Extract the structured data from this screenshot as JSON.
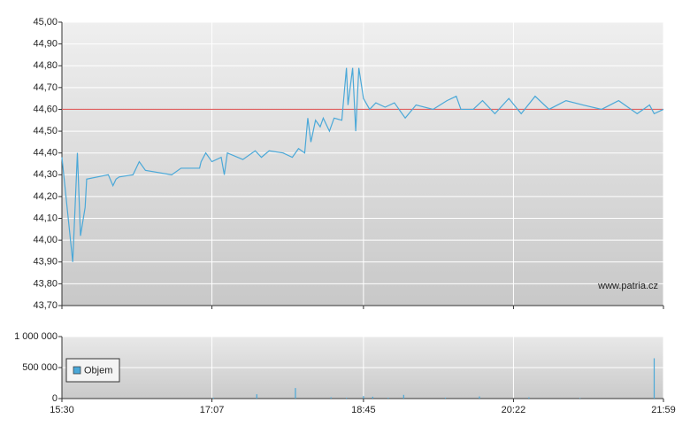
{
  "chart_data": [
    {
      "type": "line",
      "annotation": "www.patria.cz",
      "x": [
        930,
        937,
        940,
        942,
        945,
        946,
        960,
        963,
        965,
        967,
        976,
        980,
        984,
        1001,
        1007,
        1019,
        1020,
        1023,
        1027,
        1033,
        1035,
        1037,
        1047,
        1055,
        1059,
        1064,
        1073,
        1079,
        1083,
        1087,
        1089,
        1091,
        1094,
        1097,
        1099,
        1103,
        1106,
        1111,
        1114,
        1115,
        1118,
        1120,
        1122,
        1125,
        1129,
        1133,
        1139,
        1145,
        1152,
        1159,
        1170,
        1179,
        1185,
        1188,
        1196,
        1202,
        1210,
        1219,
        1227,
        1236,
        1245,
        1256,
        1267,
        1279,
        1290,
        1302,
        1310,
        1313,
        1319
      ],
      "series": [
        {
          "color": "#4aa8d8",
          "values": [
            44.38,
            43.9,
            44.4,
            44.02,
            44.15,
            44.28,
            44.3,
            44.25,
            44.28,
            44.29,
            44.3,
            44.36,
            44.32,
            44.3,
            44.33,
            44.33,
            44.36,
            44.4,
            44.36,
            44.38,
            44.3,
            44.4,
            44.37,
            44.41,
            44.38,
            44.41,
            44.4,
            44.38,
            44.42,
            44.4,
            44.56,
            44.45,
            44.55,
            44.52,
            44.56,
            44.5,
            44.56,
            44.55,
            44.79,
            44.62,
            44.79,
            44.5,
            44.79,
            44.65,
            44.6,
            44.63,
            44.61,
            44.63,
            44.56,
            44.62,
            44.6,
            44.64,
            44.66,
            44.6,
            44.6,
            44.64,
            44.58,
            44.65,
            44.58,
            44.66,
            44.6,
            44.64,
            44.62,
            44.6,
            44.64,
            44.58,
            44.62,
            44.58,
            44.6
          ]
        }
      ],
      "reference_line": {
        "value": 44.6,
        "color": "#e06060"
      },
      "xlim": [
        930,
        1319
      ],
      "xticks": [
        930,
        1027,
        1125,
        1222,
        1319
      ],
      "ylim": [
        43.7,
        45.0
      ],
      "yticks": [
        {
          "value": 43.7,
          "label": "43,70"
        },
        {
          "value": 43.8,
          "label": "43,80"
        },
        {
          "value": 43.9,
          "label": "43,90"
        },
        {
          "value": 44.0,
          "label": "44,00"
        },
        {
          "value": 44.1,
          "label": "44,10"
        },
        {
          "value": 44.2,
          "label": "44,20"
        },
        {
          "value": 44.3,
          "label": "44,30"
        },
        {
          "value": 44.4,
          "label": "44,40"
        },
        {
          "value": 44.5,
          "label": "44,50"
        },
        {
          "value": 44.6,
          "label": "44,60"
        },
        {
          "value": 44.7,
          "label": "44,70"
        },
        {
          "value": 44.8,
          "label": "44,80"
        },
        {
          "value": 44.9,
          "label": "44,90"
        },
        {
          "value": 45.0,
          "label": "45,00"
        }
      ],
      "grid": true
    },
    {
      "type": "bar",
      "x": [
        1028,
        1056,
        1081,
        1104,
        1114,
        1125,
        1131,
        1141,
        1151,
        1178,
        1200,
        1232,
        1265,
        1313
      ],
      "series": [
        {
          "name": "Objem",
          "color": "#4aa8d8",
          "values": [
            15000,
            70000,
            170000,
            20000,
            15000,
            40000,
            30000,
            15000,
            60000,
            15000,
            35000,
            20000,
            10000,
            650000
          ]
        }
      ],
      "xlim": [
        930,
        1319
      ],
      "xticks": [
        {
          "value": 930,
          "label": "15:30"
        },
        {
          "value": 1027,
          "label": "17:07"
        },
        {
          "value": 1125,
          "label": "18:45"
        },
        {
          "value": 1222,
          "label": "20:22"
        },
        {
          "value": 1319,
          "label": "21:59"
        }
      ],
      "ylim": [
        0,
        1000000
      ],
      "yticks": [
        {
          "value": 0,
          "label": "0"
        },
        {
          "value": 500000,
          "label": "500 000"
        },
        {
          "value": 1000000,
          "label": "1 000 000"
        }
      ],
      "legend": "upper-left",
      "grid": true
    }
  ]
}
